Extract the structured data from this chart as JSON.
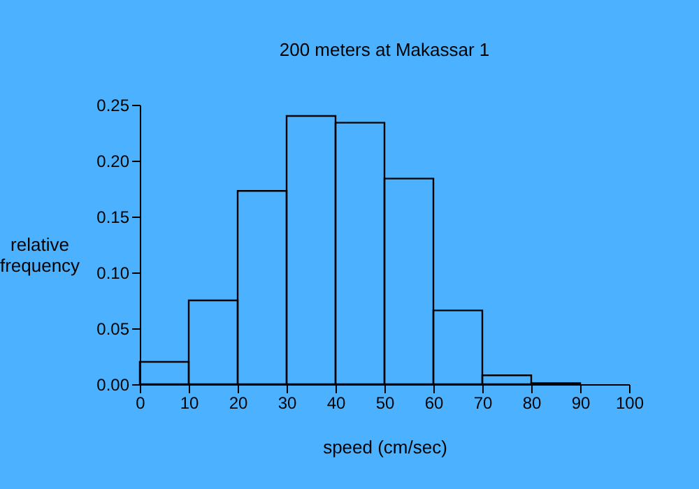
{
  "chart_data": {
    "type": "histogram",
    "title": "200 meters at Makassar 1",
    "xlabel": "speed (cm/sec)",
    "ylabel": "relative frequency",
    "bins": [
      0,
      10,
      20,
      30,
      40,
      50,
      60,
      70,
      80,
      90
    ],
    "values": [
      0.02,
      0.075,
      0.173,
      0.24,
      0.234,
      0.184,
      0.066,
      0.008,
      0.001
    ],
    "color": "#000000",
    "xlim": [
      0,
      100
    ],
    "xticks": [
      0,
      10,
      20,
      30,
      40,
      50,
      60,
      70,
      80,
      90,
      100
    ],
    "ylim": [
      0,
      0.25
    ],
    "yticks": [
      {
        "value": 0,
        "label": "0.00"
      },
      {
        "value": 0.05,
        "label": "0.05"
      },
      {
        "value": 0.1,
        "label": "0.10"
      },
      {
        "value": 0.15,
        "label": "0.15"
      },
      {
        "value": 0.2,
        "label": "0.20"
      },
      {
        "value": 0.25,
        "label": "0.25"
      }
    ],
    "grid": false
  }
}
